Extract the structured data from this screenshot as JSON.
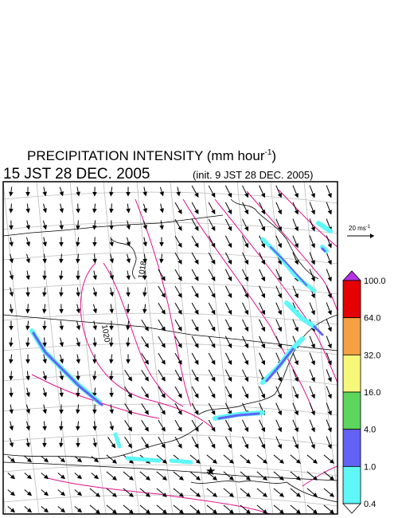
{
  "header": {
    "title": "PRECIPITATION INTENSITY (mm hour",
    "title_sup": "-1",
    "title_end": ")",
    "time": "15 JST 28 DEC. 2005",
    "init": "(init. 9 JST 28 DEC. 2005)"
  },
  "map": {
    "contour_labels": [
      "1020",
      "1018"
    ]
  },
  "wind_scale": {
    "label": "20 ms",
    "sup": "-1"
  },
  "colorbar": {
    "labels": [
      "100.0",
      "64.0",
      "32.0",
      "16.0",
      "4.0",
      "1.0",
      "0.4"
    ]
  }
}
